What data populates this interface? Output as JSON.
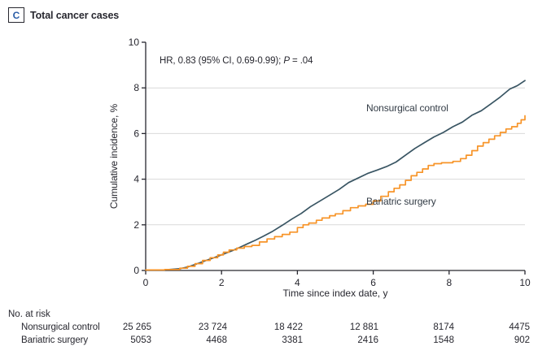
{
  "header": {
    "panel_label": "C",
    "title": "Total cancer cases"
  },
  "annotation": {
    "prefix": "HR, 0.83 (95% CI, 0.69-0.99); ",
    "p_italic": "P",
    "suffix": " = .04"
  },
  "chart_data": {
    "type": "line",
    "title": "Total cancer cases",
    "xlabel": "Time since index date, y",
    "ylabel": "Cumulative incidence, %",
    "xlim": [
      0,
      10
    ],
    "ylim": [
      0,
      10
    ],
    "x_ticks": [
      0,
      2,
      4,
      6,
      8,
      10
    ],
    "y_ticks": [
      0,
      2,
      4,
      6,
      8,
      10
    ],
    "gridlines_y": [
      2,
      4,
      6,
      8
    ],
    "grid_color": "#d9d9d9",
    "axis_color": "#27272f",
    "legend_position": "inline-labels",
    "series": [
      {
        "name": "Nonsurgical control",
        "color": "#395563",
        "interpolation": "linear",
        "points": [
          [
            0,
            0.02
          ],
          [
            0.5,
            0.03
          ],
          [
            0.9,
            0.08
          ],
          [
            1.1,
            0.15
          ],
          [
            1.3,
            0.26
          ],
          [
            1.5,
            0.38
          ],
          [
            1.7,
            0.5
          ],
          [
            1.9,
            0.62
          ],
          [
            2.1,
            0.75
          ],
          [
            2.3,
            0.88
          ],
          [
            2.5,
            1.03
          ],
          [
            2.7,
            1.18
          ],
          [
            2.9,
            1.33
          ],
          [
            3.1,
            1.5
          ],
          [
            3.35,
            1.72
          ],
          [
            3.6,
            1.98
          ],
          [
            3.85,
            2.25
          ],
          [
            4.1,
            2.5
          ],
          [
            4.35,
            2.8
          ],
          [
            4.6,
            3.05
          ],
          [
            4.85,
            3.3
          ],
          [
            5.1,
            3.55
          ],
          [
            5.35,
            3.85
          ],
          [
            5.6,
            4.05
          ],
          [
            5.85,
            4.25
          ],
          [
            6.1,
            4.4
          ],
          [
            6.35,
            4.55
          ],
          [
            6.6,
            4.75
          ],
          [
            6.85,
            5.05
          ],
          [
            7.1,
            5.35
          ],
          [
            7.35,
            5.6
          ],
          [
            7.6,
            5.85
          ],
          [
            7.85,
            6.05
          ],
          [
            8.1,
            6.3
          ],
          [
            8.35,
            6.5
          ],
          [
            8.6,
            6.8
          ],
          [
            8.85,
            7.0
          ],
          [
            9.1,
            7.3
          ],
          [
            9.35,
            7.6
          ],
          [
            9.6,
            7.95
          ],
          [
            9.8,
            8.1
          ],
          [
            10,
            8.32
          ]
        ]
      },
      {
        "name": "Bariatric surgery",
        "color": "#f79428",
        "interpolation": "step-after",
        "points": [
          [
            0,
            0.02
          ],
          [
            0.5,
            0.04
          ],
          [
            0.9,
            0.1
          ],
          [
            1.1,
            0.18
          ],
          [
            1.3,
            0.3
          ],
          [
            1.5,
            0.44
          ],
          [
            1.7,
            0.56
          ],
          [
            1.9,
            0.68
          ],
          [
            2.05,
            0.8
          ],
          [
            2.2,
            0.9
          ],
          [
            2.4,
            0.98
          ],
          [
            2.6,
            1.05
          ],
          [
            2.8,
            1.1
          ],
          [
            3.0,
            1.25
          ],
          [
            3.2,
            1.38
          ],
          [
            3.4,
            1.48
          ],
          [
            3.6,
            1.58
          ],
          [
            3.8,
            1.68
          ],
          [
            4.0,
            1.88
          ],
          [
            4.15,
            2.0
          ],
          [
            4.3,
            2.08
          ],
          [
            4.5,
            2.2
          ],
          [
            4.65,
            2.3
          ],
          [
            4.85,
            2.4
          ],
          [
            5.0,
            2.48
          ],
          [
            5.2,
            2.62
          ],
          [
            5.4,
            2.75
          ],
          [
            5.6,
            2.83
          ],
          [
            5.8,
            2.9
          ],
          [
            6.0,
            3.05
          ],
          [
            6.2,
            3.25
          ],
          [
            6.4,
            3.45
          ],
          [
            6.55,
            3.6
          ],
          [
            6.7,
            3.75
          ],
          [
            6.85,
            3.95
          ],
          [
            7.0,
            4.15
          ],
          [
            7.15,
            4.3
          ],
          [
            7.3,
            4.45
          ],
          [
            7.45,
            4.6
          ],
          [
            7.6,
            4.68
          ],
          [
            7.8,
            4.72
          ],
          [
            8.1,
            4.78
          ],
          [
            8.3,
            4.9
          ],
          [
            8.45,
            5.05
          ],
          [
            8.6,
            5.25
          ],
          [
            8.75,
            5.45
          ],
          [
            8.9,
            5.6
          ],
          [
            9.05,
            5.75
          ],
          [
            9.2,
            5.9
          ],
          [
            9.35,
            6.05
          ],
          [
            9.5,
            6.2
          ],
          [
            9.65,
            6.3
          ],
          [
            9.8,
            6.45
          ],
          [
            9.9,
            6.6
          ],
          [
            10,
            6.78
          ]
        ]
      }
    ]
  },
  "risk_table": {
    "heading": "No. at risk",
    "rows": [
      {
        "label": "Nonsurgical control",
        "values": [
          "25 265",
          "23 724",
          "18 422",
          "12 881",
          "8174",
          "4475"
        ]
      },
      {
        "label": "Bariatric surgery",
        "values": [
          "5053",
          "4468",
          "3381",
          "2416",
          "1548",
          "902"
        ]
      }
    ]
  },
  "colors": {
    "nonsurgical_line": "#395563",
    "bariatric_line": "#f79428",
    "panel_letter_blue": "#2b5ea7",
    "text": "#27272f",
    "gridline": "#d9d9d9"
  }
}
